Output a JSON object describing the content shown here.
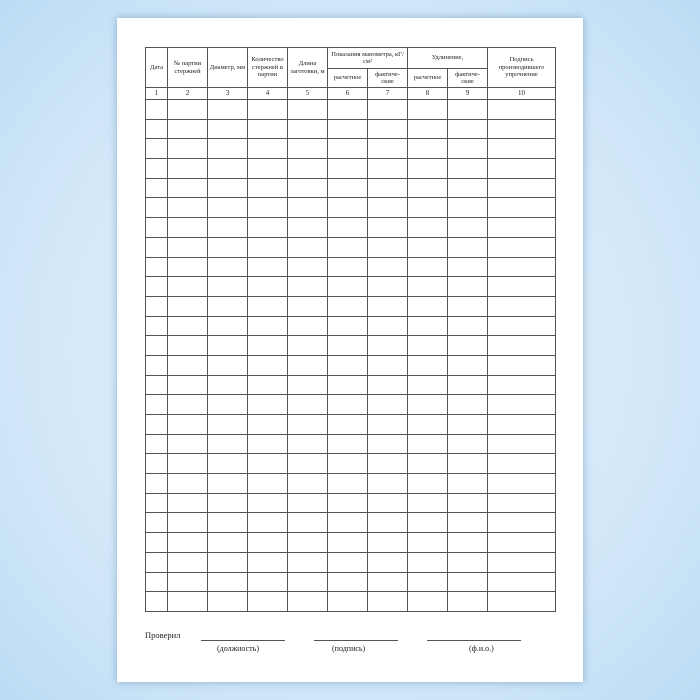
{
  "table": {
    "headers": {
      "date": "Дата",
      "batch": "№ партии стержней",
      "diameter": "Диаметр, мм",
      "count": "Количество стержней в партии",
      "length": "Длина заготовки, м",
      "manometer": "Показания манометра, кГ/см²",
      "elongation": "Удлинение,",
      "signature": "Подпись производившего упрочнение",
      "calc": "расчетное",
      "actual": "фактиче-ские"
    },
    "column_numbers": [
      "1",
      "2",
      "3",
      "4",
      "5",
      "6",
      "7",
      "8",
      "9",
      "10"
    ],
    "empty_rows": 26
  },
  "footer": {
    "checked_label": "Проверил",
    "position_caption": "(должность)",
    "signature_caption": "(подпись)",
    "name_caption": "(ф.и.о.)"
  },
  "colors": {
    "background": "#cfe6f8",
    "page": "#ffffff",
    "grid": "#555555"
  }
}
